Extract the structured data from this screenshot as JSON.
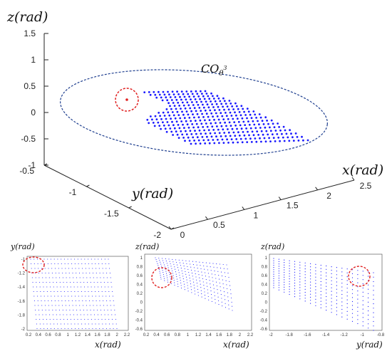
{
  "chart_data": [
    {
      "type": "scatter",
      "panel": "main-3d",
      "annotation": "CO",
      "annotation_sub": "θ",
      "annotation_sup": "3",
      "xlabel": "x(rad)",
      "ylabel": "y(rad)",
      "zlabel": "z(rad)",
      "xlim": [
        0,
        2.5
      ],
      "ylim": [
        -2,
        -0.5
      ],
      "zlim": [
        -1,
        1.5
      ],
      "x_ticks": [
        "0",
        "0.5",
        "1",
        "1.5",
        "2",
        "2.5"
      ],
      "y_ticks": [
        "-2",
        "-1.5",
        "-1",
        "-0.5"
      ],
      "z_ticks": [
        "-1",
        "-0.5",
        "0",
        "0.5",
        "1",
        "1.5"
      ],
      "grid": false,
      "highlight": "red dashed circle"
    },
    {
      "type": "scatter",
      "panel": "xy-projection",
      "xlabel": "x(rad)",
      "ylabel": "y(rad)",
      "xlim": [
        0.2,
        2.2
      ],
      "ylim": [
        -2,
        -1
      ],
      "x_ticks": [
        "0.2",
        "0.4",
        "0.6",
        "0.8",
        "1",
        "1.2",
        "1.4",
        "1.6",
        "1.8",
        "2",
        "2.2"
      ],
      "y_ticks": [
        "-1",
        "-1.2",
        "-1.4",
        "-1.6",
        "-1.8",
        "-2"
      ]
    },
    {
      "type": "scatter",
      "panel": "xz-projection",
      "xlabel": "x(rad)",
      "ylabel": "z(rad)",
      "xlim": [
        0.2,
        2.2
      ],
      "ylim": [
        -0.6,
        1
      ],
      "x_ticks": [
        "0.2",
        "0.4",
        "0.6",
        "0.8",
        "1",
        "1.2",
        "1.4",
        "1.6",
        "1.8",
        "2",
        "2.2"
      ],
      "y_ticks": [
        "1",
        "0.8",
        "0.6",
        "0.4",
        "0.2",
        "0",
        "-0.2",
        "-0.4",
        "-0.6"
      ]
    },
    {
      "type": "scatter",
      "panel": "yz-projection",
      "xlabel": "y(rad)",
      "ylabel": "z(rad)",
      "xlim": [
        -2,
        -0.8
      ],
      "ylim": [
        -0.6,
        1
      ],
      "x_ticks": [
        "-2",
        "-1.8",
        "-1.6",
        "-1.4",
        "-1.2",
        "-1",
        "-0.8"
      ],
      "y_ticks": [
        "1",
        "0.8",
        "0.6",
        "0.4",
        "0.2",
        "0",
        "-0.2",
        "-0.4",
        "-0.6"
      ]
    }
  ],
  "colors": {
    "points": "#1a1aff",
    "highlight": "#e02020",
    "envelope": "#1f3f8f"
  }
}
